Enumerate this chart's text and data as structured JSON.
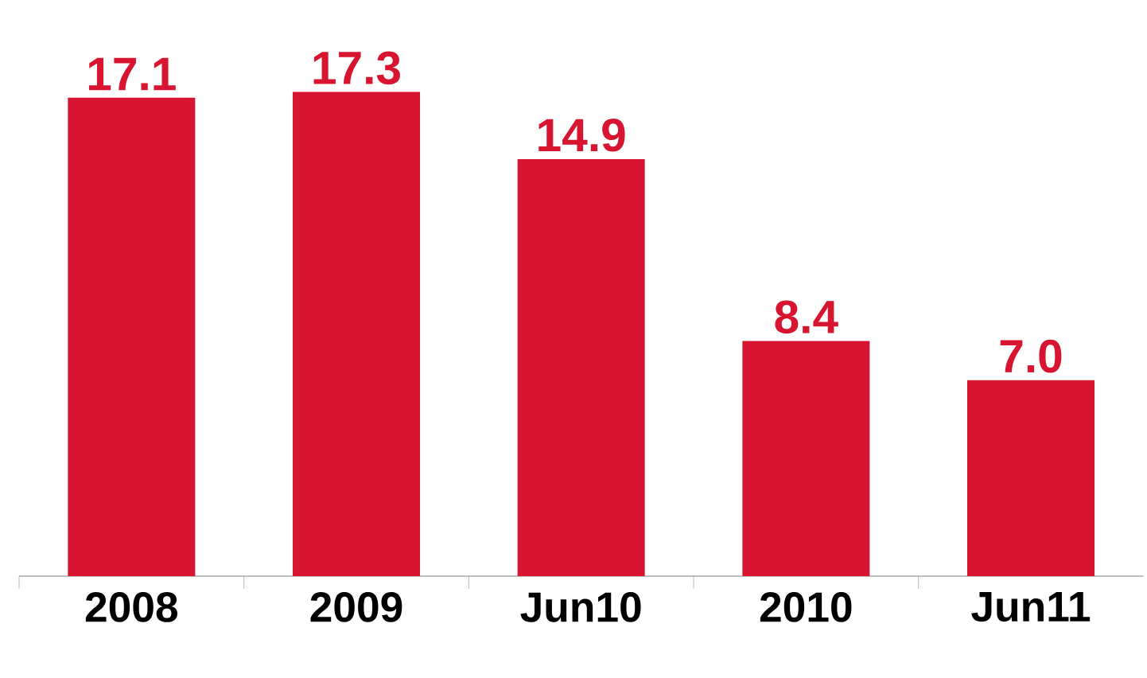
{
  "chart_data": {
    "type": "bar",
    "categories": [
      "2008",
      "2009",
      "Jun10",
      "2010",
      "Jun11"
    ],
    "values": [
      17.1,
      17.3,
      14.9,
      8.4,
      7.0
    ],
    "value_labels": [
      "17.1",
      "17.3",
      "14.9",
      "8.4",
      "7.0"
    ],
    "color": "#d81530"
  }
}
